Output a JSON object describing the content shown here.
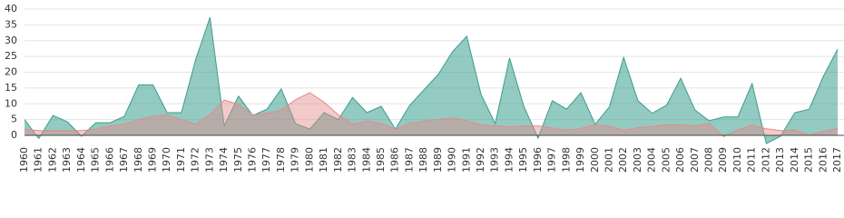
{
  "chart_data": {
    "type": "area",
    "categories": [
      "1960",
      "1961",
      "1962",
      "1963",
      "1964",
      "1965",
      "1966",
      "1967",
      "1968",
      "1969",
      "1970",
      "1971",
      "1972",
      "1973",
      "1974",
      "1975",
      "1976",
      "1977",
      "1978",
      "1979",
      "1980",
      "1981",
      "1982",
      "1983",
      "1984",
      "1985",
      "1986",
      "1987",
      "1988",
      "1989",
      "1990",
      "1991",
      "1992",
      "1993",
      "1994",
      "1995",
      "1996",
      "1997",
      "1998",
      "1999",
      "2000",
      "2001",
      "2002",
      "2003",
      "2004",
      "2005",
      "2006",
      "2007",
      "2008",
      "2009",
      "2010",
      "2011",
      "2012",
      "2013",
      "2014",
      "2015",
      "2016",
      "2017"
    ],
    "series": [
      {
        "color": "#3a9e8e",
        "values": [
          5,
          -1,
          6.3,
          4.3,
          -0.3,
          4,
          4,
          6,
          16,
          16,
          7.2,
          7.2,
          24,
          37.4,
          3,
          12.4,
          6.3,
          8.3,
          14.7,
          3.7,
          2,
          7.2,
          5,
          12,
          7.2,
          9.2,
          2,
          9.5,
          14.4,
          19.3,
          26.5,
          31.4,
          13,
          3.7,
          24.5,
          9.2,
          -0.9,
          11,
          8.3,
          13.5,
          3.5,
          9,
          24.7,
          11,
          7,
          9.5,
          18.1,
          8,
          4.6,
          5.8,
          5.8,
          16.4,
          -2.6,
          -0.3,
          7.2,
          8.3,
          18.7,
          27.3
        ]
      },
      {
        "color": "#e58a8a",
        "values": [
          2,
          1.5,
          1.5,
          1.5,
          1.5,
          2,
          3,
          3.5,
          5,
          6,
          6.5,
          5,
          3.5,
          6.5,
          11.2,
          9.8,
          6.5,
          7,
          8,
          11.3,
          13.5,
          10.5,
          6.5,
          3.5,
          4.5,
          3.8,
          2,
          3.8,
          4.5,
          5,
          5.5,
          4.6,
          3.3,
          3,
          2.7,
          3,
          3,
          2.3,
          1.6,
          2.2,
          3.4,
          2.8,
          1.6,
          2.4,
          2.8,
          3.4,
          3.3,
          2.9,
          3.8,
          -0.4,
          1.7,
          3.2,
          2.1,
          1.5,
          1.6,
          0.1,
          1.3,
          2.2
        ]
      }
    ],
    "ylim": [
      -3,
      41
    ],
    "yticks": [
      0,
      5,
      10,
      15,
      20,
      25,
      30,
      35,
      40
    ],
    "grid": true
  }
}
